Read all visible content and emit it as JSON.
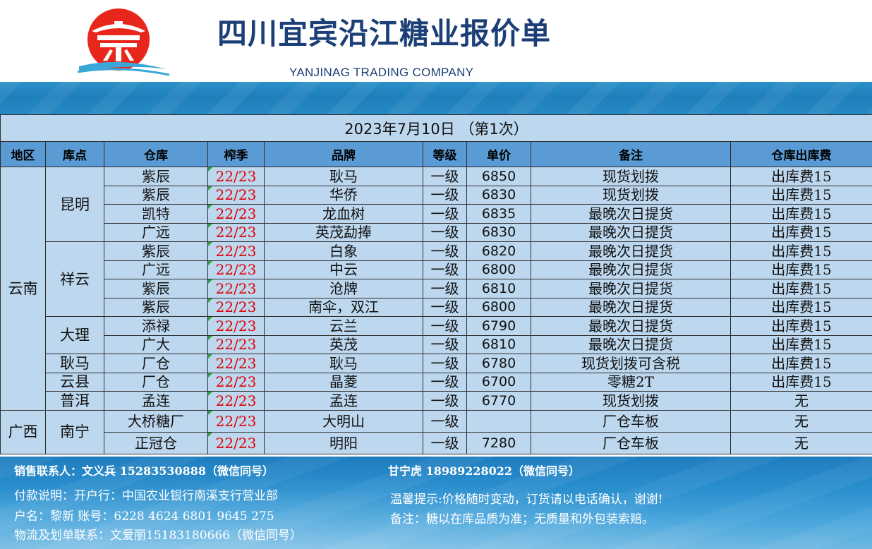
{
  "header": {
    "title": "四川宜宾沿江糖业报价单",
    "subtitle": "YANJINAG TRADING COMPANY",
    "logo_icon": "pavilion-logo-icon",
    "colors": {
      "logo_red": "#e8261c",
      "title_blue": "#1c3f77",
      "banner_blue": "#2589c3",
      "header_row": "#5b9bd5",
      "table_bg": "#bdd7ee",
      "season_red": "#e00000"
    }
  },
  "table": {
    "date_line": "2023年7月10日 （第1次）",
    "columns": [
      "地区",
      "库点",
      "仓库",
      "榨季",
      "品牌",
      "等级",
      "单价",
      "备注",
      "仓库出库费"
    ],
    "regions": [
      {
        "name": "云南",
        "points": [
          {
            "name": "昆明",
            "rows": [
              {
                "warehouse": "紫辰",
                "season": "22/23",
                "brand": "耿马",
                "grade": "一级",
                "price": "6850",
                "note": "现货划拨",
                "fee": "出库费15"
              },
              {
                "warehouse": "紫辰",
                "season": "22/23",
                "brand": "华侨",
                "grade": "一级",
                "price": "6830",
                "note": "现货划拨",
                "fee": "出库费15"
              },
              {
                "warehouse": "凯特",
                "season": "22/23",
                "brand": "龙血树",
                "grade": "一级",
                "price": "6835",
                "note": "最晚次日提货",
                "fee": "出库费15"
              },
              {
                "warehouse": "广远",
                "season": "22/23",
                "brand": "英茂勐捧",
                "grade": "一级",
                "price": "6830",
                "note": "最晚次日提货",
                "fee": "出库费15"
              }
            ]
          },
          {
            "name": "祥云",
            "rows": [
              {
                "warehouse": "紫辰",
                "season": "22/23",
                "brand": "白象",
                "grade": "一级",
                "price": "6820",
                "note": "最晚次日提货",
                "fee": "出库费15"
              },
              {
                "warehouse": "广远",
                "season": "22/23",
                "brand": "中云",
                "grade": "一级",
                "price": "6800",
                "note": "最晚次日提货",
                "fee": "出库费15"
              },
              {
                "warehouse": "紫辰",
                "season": "22/23",
                "brand": "沧牌",
                "grade": "一级",
                "price": "6810",
                "note": "最晚次日提货",
                "fee": "出库费15"
              },
              {
                "warehouse": "紫辰",
                "season": "22/23",
                "brand": "南伞，双江",
                "grade": "一级",
                "price": "6800",
                "note": "最晚次日提货",
                "fee": "出库费15"
              }
            ]
          },
          {
            "name": "大理",
            "rows": [
              {
                "warehouse": "添禄",
                "season": "22/23",
                "brand": "云兰",
                "grade": "一级",
                "price": "6790",
                "note": "最晚次日提货",
                "fee": "出库费15"
              },
              {
                "warehouse": "广大",
                "season": "22/23",
                "brand": "英茂",
                "grade": "一级",
                "price": "6810",
                "note": "最晚次日提货",
                "fee": "出库费15"
              }
            ]
          },
          {
            "name": "耿马",
            "rows": [
              {
                "warehouse": "厂仓",
                "season": "22/23",
                "brand": "耿马",
                "grade": "一级",
                "price": "6780",
                "note": "现货划拨可含税",
                "fee": "出库费15"
              }
            ]
          },
          {
            "name": "云县",
            "rows": [
              {
                "warehouse": "厂仓",
                "season": "22/23",
                "brand": "晶菱",
                "grade": "一级",
                "price": "6700",
                "note": "零糖2T",
                "fee": "出库费15"
              }
            ]
          },
          {
            "name": "普洱",
            "rows": [
              {
                "warehouse": "孟连",
                "season": "22/23",
                "brand": "孟连",
                "grade": "一级",
                "price": "6770",
                "note": "现货划拨",
                "fee": "无"
              }
            ]
          }
        ]
      },
      {
        "name": "广西",
        "points": [
          {
            "name": "南宁",
            "rows": [
              {
                "warehouse": "大桥糖厂",
                "season": "22/23",
                "brand": "大明山",
                "grade": "一级",
                "price": "",
                "note": "厂仓车板",
                "fee": "无"
              },
              {
                "warehouse": "正冠仓",
                "season": "22/23",
                "brand": "明阳",
                "grade": "一级",
                "price": "7280",
                "note": "厂仓车板",
                "fee": "无"
              }
            ]
          }
        ]
      }
    ]
  },
  "footer": {
    "sales_contact_1": "销售联系人：文义兵 15283530888（微信同号）",
    "sales_contact_2": "甘宁虎 18989228022（微信同号）",
    "payment": "付款说明：开户行：中国农业银行南溪支行营业部",
    "account": "户名：黎新  账号：6228  4624  6801  9645  275",
    "logistics": "物流及划单联系：文爱丽15183180666（微信同号）",
    "tip": "温馨提示:价格随时变动，订货请以电话确认，谢谢!",
    "remark": "备注：糖以在库品质为准；无质量和外包装索赔。"
  }
}
